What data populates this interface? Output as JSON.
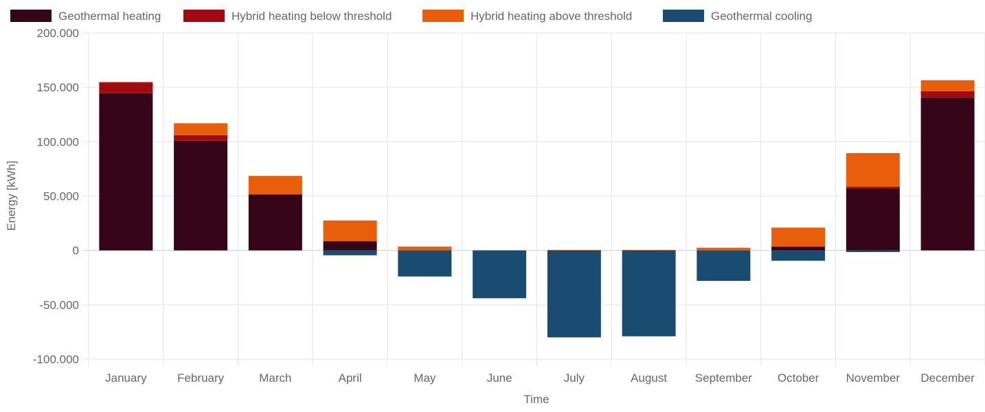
{
  "chart_data": {
    "type": "bar",
    "stacked": true,
    "categories": [
      "January",
      "February",
      "March",
      "April",
      "May",
      "June",
      "July",
      "August",
      "September",
      "October",
      "November",
      "December"
    ],
    "series": [
      {
        "name": "Geothermal heating",
        "color": "#360517",
        "values": [
          144500,
          101000,
          51500,
          8500,
          0,
          0,
          0,
          0,
          0,
          3500,
          57000,
          140500
        ]
      },
      {
        "name": "Hybrid heating below threshold",
        "color": "#a00a10",
        "values": [
          10000,
          5000,
          0,
          0,
          0,
          0,
          0,
          0,
          0,
          0,
          1500,
          6000
        ]
      },
      {
        "name": "Hybrid heating above threshold",
        "color": "#e85e0a",
        "values": [
          500,
          11000,
          17000,
          19000,
          3500,
          0,
          500,
          500,
          2500,
          17500,
          31000,
          10000
        ]
      },
      {
        "name": "Geothermal cooling",
        "color": "#1a4c72",
        "values": [
          0,
          0,
          0,
          -4500,
          -24000,
          -44000,
          -80000,
          -79000,
          -28000,
          -9500,
          -1500,
          0
        ]
      }
    ],
    "yticks": [
      "200.000",
      "150.000",
      "100.000",
      "50.000",
      "0",
      "-50.000",
      "-100.000"
    ],
    "ytick_values": [
      200000,
      150000,
      100000,
      50000,
      0,
      -50000,
      -100000
    ],
    "ylim": [
      -100000,
      200000
    ],
    "xlabel": "Time",
    "ylabel": "Energy [kWh]",
    "legend_position": "top-left",
    "grid": true
  }
}
